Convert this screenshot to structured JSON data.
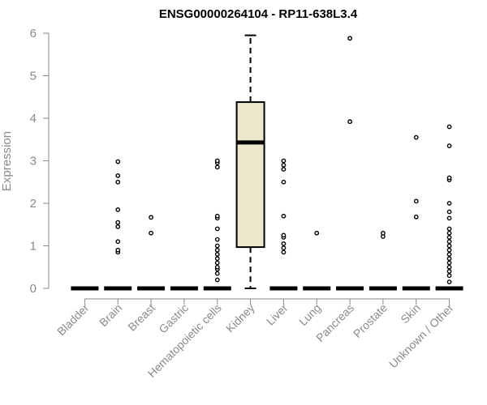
{
  "chart_data": {
    "type": "box",
    "title": "ENSG00000264104 - RP11-638L3.4",
    "xlabel": "",
    "ylabel": "Expression",
    "ylim": [
      0,
      6
    ],
    "yticks": [
      0,
      1,
      2,
      3,
      4,
      5,
      6
    ],
    "box_color": "#ede7cd",
    "categories": [
      "Bladder",
      "Brain",
      "Breast",
      "Gastric",
      "Hematopoietic cells",
      "Kidney",
      "Liver",
      "Lung",
      "Pancreas",
      "Prostate",
      "Skin",
      "Unknown / Other"
    ],
    "boxes": [
      {
        "name": "Bladder",
        "q1": 0,
        "median": 0,
        "q3": 0,
        "whisker_low": 0,
        "whisker_high": 0,
        "outliers": []
      },
      {
        "name": "Brain",
        "q1": 0,
        "median": 0,
        "q3": 0,
        "whisker_low": 0,
        "whisker_high": 0,
        "outliers": [
          0.85,
          0.9,
          1.1,
          1.45,
          1.55,
          1.85,
          2.5,
          2.65,
          2.98
        ]
      },
      {
        "name": "Breast",
        "q1": 0,
        "median": 0,
        "q3": 0,
        "whisker_low": 0,
        "whisker_high": 0,
        "outliers": [
          1.3,
          1.67
        ]
      },
      {
        "name": "Gastric",
        "q1": 0,
        "median": 0,
        "q3": 0,
        "whisker_low": 0,
        "whisker_high": 0,
        "outliers": []
      },
      {
        "name": "Hematopoietic cells",
        "q1": 0,
        "median": 0,
        "q3": 0,
        "whisker_low": 0,
        "whisker_high": 0,
        "outliers": [
          0.2,
          0.35,
          0.45,
          0.5,
          0.6,
          0.7,
          0.8,
          0.9,
          1.0,
          1.15,
          1.4,
          1.65,
          1.7,
          2.85,
          2.95,
          3.0
        ]
      },
      {
        "name": "Kidney",
        "q1": 0.97,
        "median": 3.43,
        "q3": 4.38,
        "whisker_low": 0,
        "whisker_high": 5.95,
        "outliers": []
      },
      {
        "name": "Liver",
        "q1": 0,
        "median": 0,
        "q3": 0,
        "whisker_low": 0,
        "whisker_high": 0,
        "outliers": [
          0.85,
          0.95,
          1.05,
          1.2,
          1.25,
          1.7,
          2.5,
          2.8,
          2.9,
          3.0
        ]
      },
      {
        "name": "Lung",
        "q1": 0,
        "median": 0,
        "q3": 0,
        "whisker_low": 0,
        "whisker_high": 0,
        "outliers": [
          1.3
        ]
      },
      {
        "name": "Pancreas",
        "q1": 0,
        "median": 0,
        "q3": 0,
        "whisker_low": 0,
        "whisker_high": 0,
        "outliers": [
          3.92,
          5.88
        ]
      },
      {
        "name": "Prostate",
        "q1": 0,
        "median": 0,
        "q3": 0,
        "whisker_low": 0,
        "whisker_high": 0,
        "outliers": [
          1.22,
          1.3
        ]
      },
      {
        "name": "Skin",
        "q1": 0,
        "median": 0,
        "q3": 0,
        "whisker_low": 0,
        "whisker_high": 0,
        "outliers": [
          1.68,
          2.05,
          3.55
        ]
      },
      {
        "name": "Unknown / Other",
        "q1": 0,
        "median": 0,
        "q3": 0,
        "whisker_low": 0,
        "whisker_high": 0,
        "outliers": [
          0.15,
          0.3,
          0.4,
          0.5,
          0.6,
          0.7,
          0.8,
          0.9,
          1.0,
          1.1,
          1.2,
          1.3,
          1.4,
          1.65,
          1.8,
          2.0,
          2.55,
          2.6,
          3.35,
          3.8
        ]
      }
    ]
  }
}
